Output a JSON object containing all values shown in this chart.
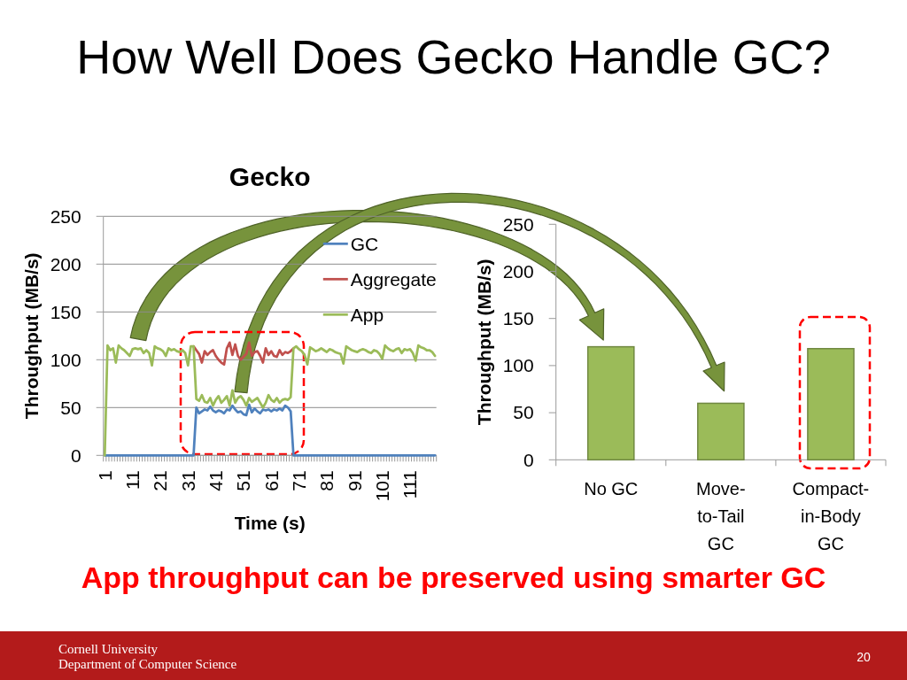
{
  "chart_data": [
    {
      "type": "other",
      "title": "How Well Does Gecko Handle GC?",
      "annotations": [
        "App throughput can be preserved using smarter GC",
        "Cornell University",
        "Department of Computer Science",
        "20"
      ]
    },
    {
      "type": "line",
      "title": "Gecko",
      "xlabel": "Time (s)",
      "ylabel": "Throughput (MB/s)",
      "categories": [
        "1",
        null,
        null,
        null,
        null,
        null,
        null,
        null,
        null,
        null,
        "11",
        null,
        null,
        null,
        null,
        null,
        null,
        null,
        null,
        null,
        "21",
        null,
        null,
        null,
        null,
        null,
        null,
        null,
        null,
        null,
        "31",
        null,
        null,
        null,
        null,
        null,
        null,
        null,
        null,
        null,
        "41",
        null,
        null,
        null,
        null,
        null,
        null,
        null,
        null,
        null,
        "51",
        null,
        null,
        null,
        null,
        null,
        null,
        null,
        null,
        null,
        "61",
        null,
        null,
        null,
        null,
        null,
        null,
        null,
        null,
        null,
        "71",
        null,
        null,
        null,
        null,
        null,
        null,
        null,
        null,
        null,
        "81",
        null,
        null,
        null,
        null,
        null,
        null,
        null,
        null,
        null,
        "91",
        null,
        null,
        null,
        null,
        null,
        null,
        null,
        null,
        null,
        "101",
        null,
        null,
        null,
        null,
        null,
        null,
        null,
        null,
        null,
        "111",
        null,
        null,
        null,
        null,
        null,
        null,
        null,
        null,
        null
      ],
      "series": [
        {
          "name": "GC",
          "color": "#4f81bd",
          "values": [
            0,
            0,
            0,
            0,
            0,
            0,
            0,
            0,
            0,
            0,
            0,
            0,
            0,
            0,
            0,
            0,
            0,
            0,
            0,
            0,
            0,
            0,
            0,
            0,
            0,
            0,
            0,
            0,
            0,
            0,
            0,
            0,
            0,
            50,
            44,
            46,
            48,
            47,
            51,
            47,
            45,
            47,
            46,
            44,
            48,
            47,
            52,
            48,
            45,
            46,
            43,
            42,
            53,
            45,
            49,
            46,
            44,
            48,
            47,
            48,
            46,
            48,
            47,
            49,
            47,
            52,
            50,
            46,
            0,
            0,
            0,
            0,
            0,
            0,
            0,
            0,
            0,
            0,
            0,
            0,
            0,
            0,
            0,
            0,
            0,
            0,
            0,
            0,
            0,
            0,
            0,
            0,
            0,
            0,
            0,
            0,
            0,
            0,
            0,
            0,
            0,
            0,
            0,
            0,
            0,
            0,
            0,
            0,
            0,
            0,
            0,
            0,
            0,
            0,
            0,
            0,
            0,
            0,
            0,
            0
          ]
        },
        {
          "name": "Aggregate",
          "color": "#c0504d",
          "values": [
            null,
            null,
            null,
            null,
            null,
            null,
            null,
            null,
            null,
            null,
            null,
            null,
            null,
            null,
            null,
            null,
            null,
            null,
            null,
            null,
            null,
            null,
            null,
            null,
            null,
            null,
            null,
            null,
            null,
            null,
            null,
            null,
            114,
            110,
            106,
            97,
            109,
            105,
            108,
            110,
            104,
            100,
            97,
            95,
            112,
            118,
            105,
            116,
            104,
            100,
            103,
            106,
            118,
            104,
            108,
            109,
            104,
            97,
            112,
            105,
            109,
            104,
            103,
            110,
            105,
            108,
            107,
            109,
            112,
            null,
            null,
            null,
            null,
            null,
            null,
            null,
            null,
            null,
            null,
            null,
            null,
            null,
            null,
            null,
            null,
            null,
            null,
            null,
            null,
            null,
            null,
            null,
            null,
            null,
            null,
            null,
            null,
            null,
            null,
            null,
            null,
            null,
            null,
            null,
            null,
            null,
            null,
            null,
            null,
            null,
            null,
            null,
            null,
            null,
            null,
            null,
            null,
            null,
            null,
            null
          ]
        },
        {
          "name": "App",
          "color": "#9bbb59",
          "values": [
            0,
            115,
            110,
            112,
            97,
            115,
            112,
            110,
            107,
            104,
            111,
            112,
            111,
            112,
            107,
            110,
            107,
            94,
            114,
            112,
            111,
            109,
            104,
            112,
            110,
            111,
            109,
            108,
            110,
            107,
            94,
            114,
            114,
            59,
            57,
            63,
            56,
            55,
            60,
            52,
            58,
            62,
            55,
            58,
            62,
            52,
            68,
            55,
            60,
            62,
            58,
            52,
            60,
            56,
            58,
            60,
            55,
            50,
            55,
            63,
            58,
            56,
            60,
            55,
            58,
            59,
            58,
            61,
            112,
            114,
            111,
            109,
            105,
            95,
            113,
            111,
            109,
            110,
            112,
            110,
            108,
            111,
            110,
            108,
            107,
            106,
            96,
            114,
            112,
            110,
            109,
            108,
            110,
            111,
            110,
            108,
            107,
            110,
            109,
            106,
            101,
            115,
            112,
            110,
            109,
            111,
            112,
            107,
            111,
            110,
            111,
            107,
            99,
            115,
            113,
            112,
            110,
            110,
            108,
            104
          ]
        }
      ],
      "ylim": [
        0,
        250
      ],
      "yticks": [
        0,
        50,
        100,
        150,
        200,
        250
      ],
      "grid": "y",
      "legend": "top right"
    },
    {
      "type": "bar",
      "ylabel": "Throughput (MB/s)",
      "categories": [
        "No GC",
        "Move-to-Tail GC",
        "Compact-in-Body GC"
      ],
      "values": [
        120,
        60,
        118
      ],
      "color": "#9bbb59",
      "ylim": [
        0,
        250
      ],
      "yticks": [
        0,
        50,
        100,
        150,
        200,
        250
      ]
    }
  ]
}
